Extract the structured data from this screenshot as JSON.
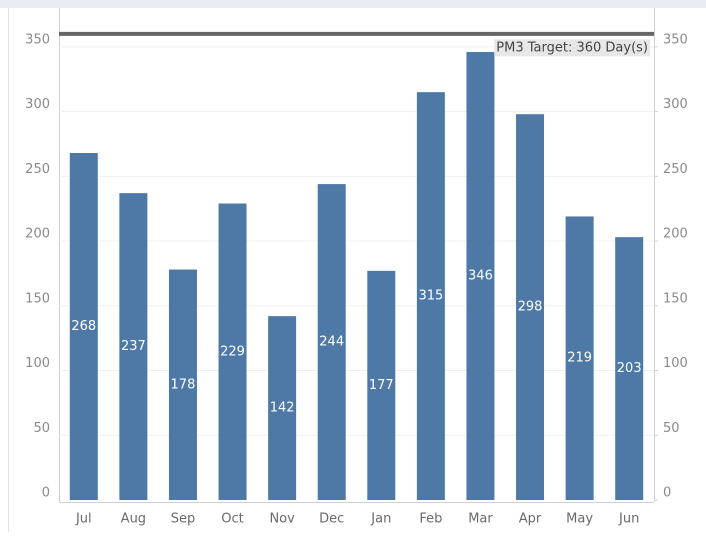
{
  "chart_data": {
    "type": "bar",
    "categories": [
      "Jul",
      "Aug",
      "Sep",
      "Oct",
      "Nov",
      "Dec",
      "Jan",
      "Feb",
      "Mar",
      "Apr",
      "May",
      "Jun"
    ],
    "values": [
      268,
      237,
      178,
      229,
      142,
      244,
      177,
      315,
      346,
      298,
      219,
      203
    ],
    "color": "#4e79a7",
    "ylim": [
      0,
      380
    ],
    "yticks": [
      0,
      50,
      100,
      150,
      200,
      250,
      300,
      350
    ],
    "y2lim": [
      0,
      380
    ],
    "y2ticks": [
      0,
      50,
      100,
      150,
      200,
      250,
      300,
      350
    ],
    "grid": true,
    "target": 360,
    "target_label": "PM3 Target: 360 Day(s)",
    "target_color": "#666666"
  }
}
